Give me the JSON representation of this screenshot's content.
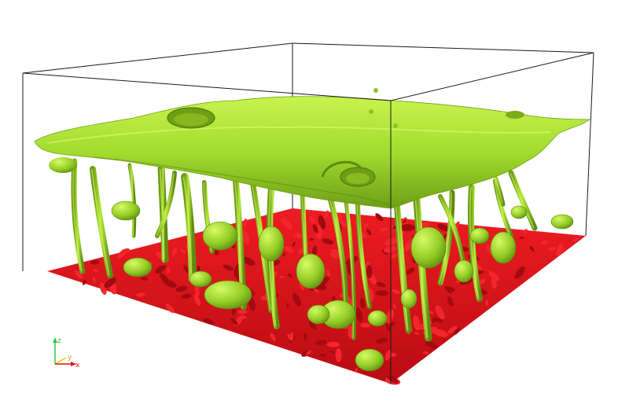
{
  "scene": {
    "background": "#ffffff",
    "colors": {
      "bottom_surface": "#e0121a",
      "bottom_surface_dark": "#9a0a0e",
      "top_surface": "#9bd62a",
      "top_surface_light": "#c6f24a",
      "top_surface_dark": "#5f8f12",
      "box_edges": "#1a1a1a"
    }
  },
  "axes": {
    "z": {
      "label": "z",
      "color": "#2ecc40"
    },
    "y": {
      "label": "y",
      "color": "#e6c700"
    },
    "x": {
      "label": "x",
      "color": "#e01010"
    }
  }
}
